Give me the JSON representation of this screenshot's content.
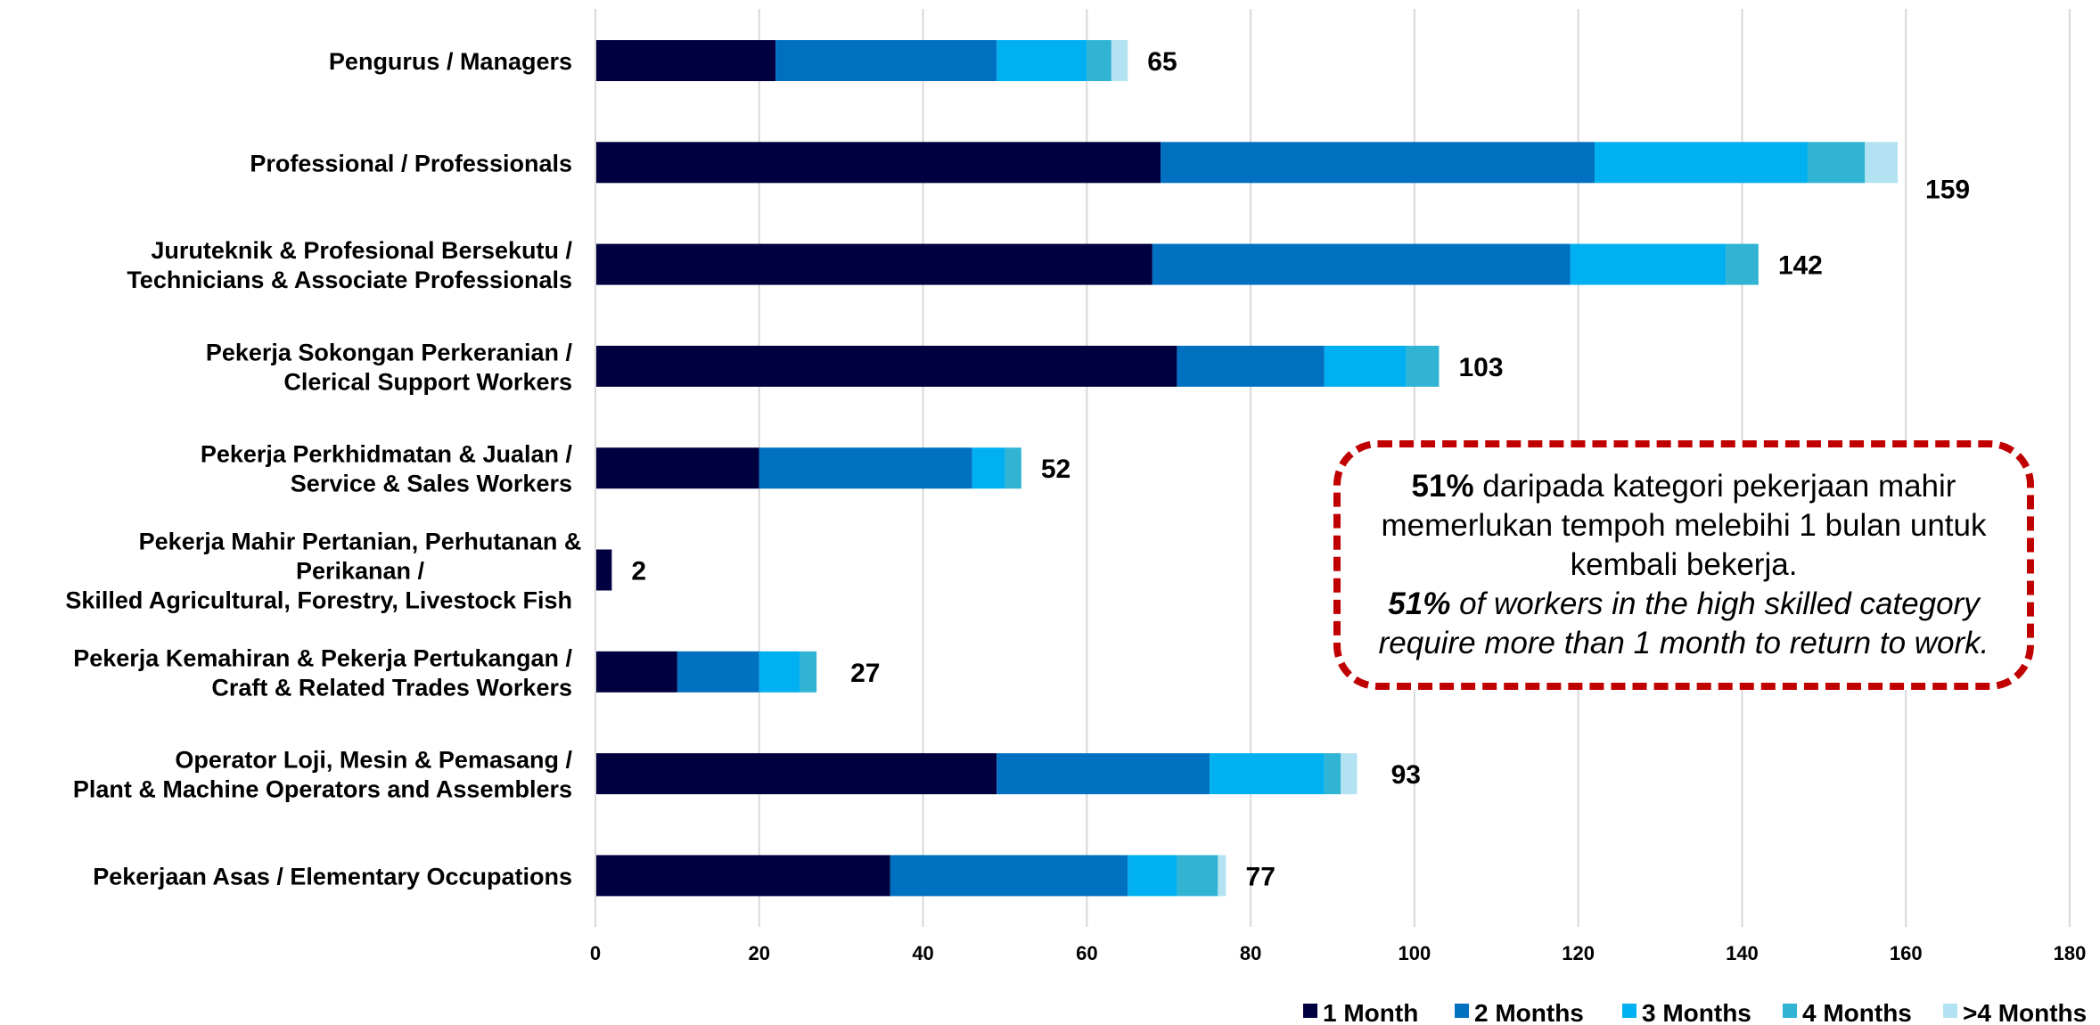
{
  "chart_data": {
    "type": "bar",
    "orientation": "horizontal",
    "stacked": true,
    "categories": [
      [
        "Pengurus / Managers"
      ],
      [
        "Professional / Professionals"
      ],
      [
        "Juruteknik & Profesional Bersekutu /",
        "Technicians & Associate Professionals"
      ],
      [
        "Pekerja Sokongan Perkeranian /",
        "Clerical Support Workers"
      ],
      [
        "Pekerja Perkhidmatan & Jualan /",
        "Service & Sales Workers"
      ],
      [
        "Pekerja Mahir Pertanian, Perhutanan &",
        "Perikanan /",
        "Skilled Agricultural, Forestry, Livestock  Fish"
      ],
      [
        "Pekerja Kemahiran & Pekerja Pertukangan /",
        "Craft & Related Trades Workers"
      ],
      [
        "Operator Loji, Mesin & Pemasang /",
        "Plant & Machine Operators and Assemblers"
      ],
      [
        "Pekerjaan Asas / Elementary Occupations"
      ]
    ],
    "series": [
      {
        "name": "1 Month",
        "color": "#000040",
        "values": [
          22,
          69,
          68,
          71,
          20,
          2,
          10,
          49,
          36
        ]
      },
      {
        "name": "2 Months",
        "color": "#0070c0",
        "values": [
          27,
          53,
          51,
          18,
          26,
          0,
          10,
          26,
          29
        ]
      },
      {
        "name": "3 Months",
        "color": "#00b0f0",
        "values": [
          11,
          26,
          19,
          10,
          4,
          0,
          5,
          14,
          6
        ]
      },
      {
        "name": "4 Months",
        "color": "#31b4d4",
        "values": [
          3,
          7,
          4,
          4,
          2,
          0,
          2,
          2,
          5
        ]
      },
      {
        "name": ">4 Months",
        "color": "#b3e3f2",
        "values": [
          2,
          4,
          0,
          0,
          0,
          0,
          0,
          2,
          1
        ]
      }
    ],
    "totals": [
      "65",
      "159",
      "142",
      "103",
      "52",
      "2",
      "27",
      "93",
      "77"
    ],
    "xlim": [
      0,
      180
    ],
    "xticks": [
      "0",
      "20",
      "40",
      "60",
      "80",
      "100",
      "120",
      "140",
      "160",
      "180"
    ],
    "grid": "vertical",
    "legend_position": "bottom-right"
  },
  "callout": {
    "ms_pct": "51%",
    "ms_text": " daripada kategori pekerjaan mahir memerlukan tempoh melebihi 1 bulan untuk kembali bekerja.",
    "en_pct": "51%",
    "en_text": " of workers in the high skilled category require more than 1 month to return to work.",
    "border_color": "#c00000"
  }
}
